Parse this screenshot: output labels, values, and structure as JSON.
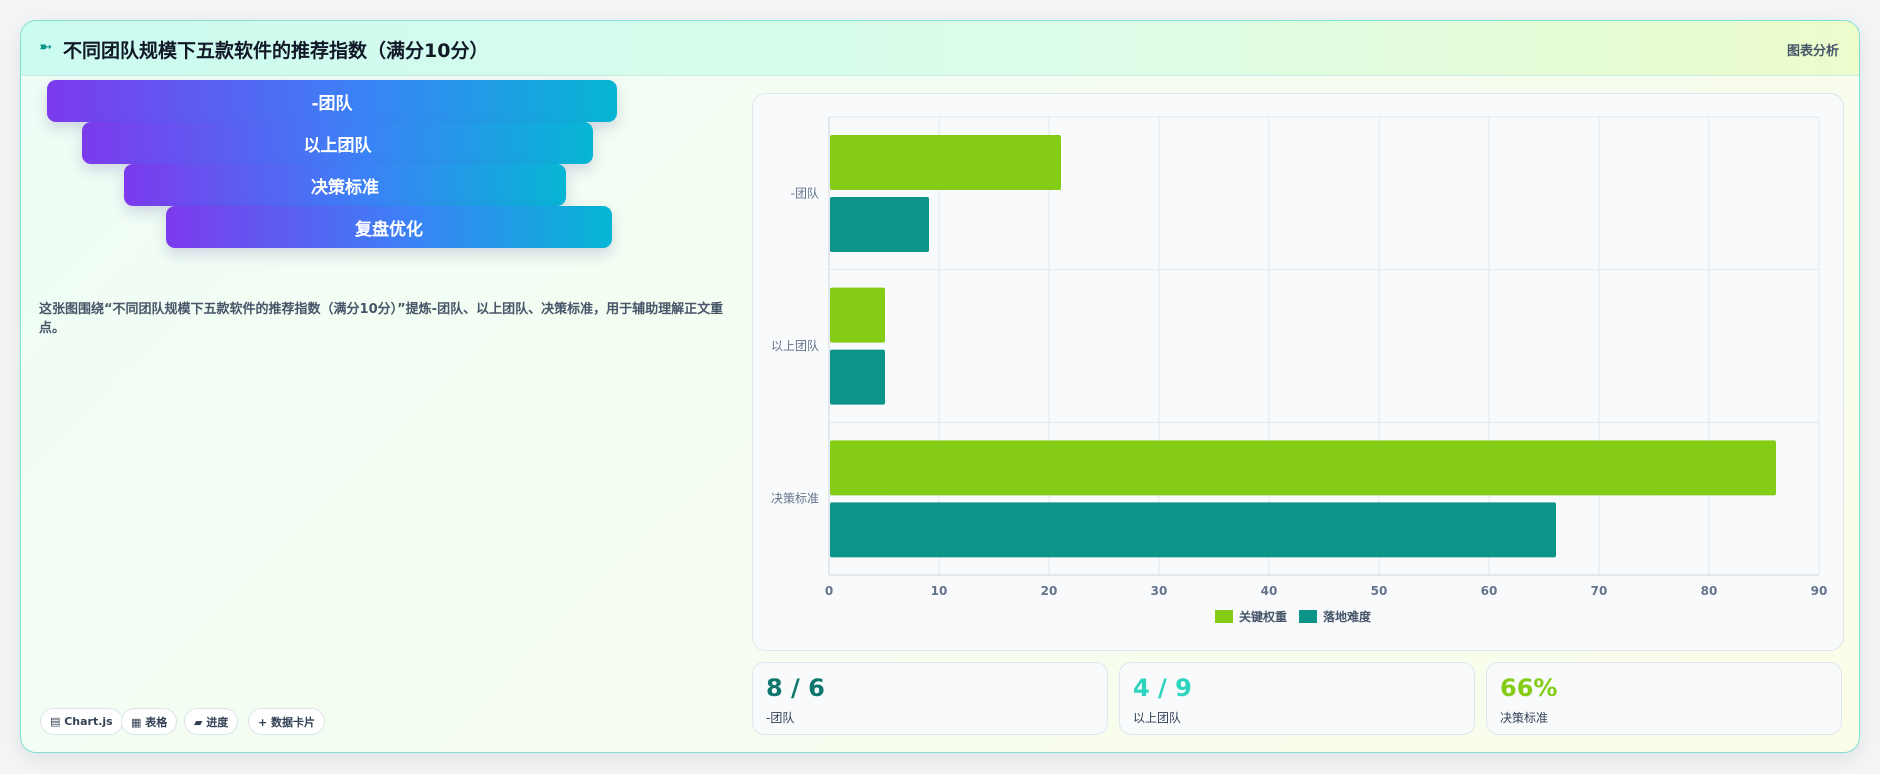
{
  "header": {
    "icon": "spark-icon",
    "icon_glyph": "➼",
    "title": "不同团队规模下五款软件的推荐指数（满分10分）",
    "tag": "图表分析"
  },
  "funnel": [
    {
      "label": "-团队"
    },
    {
      "label": "以上团队"
    },
    {
      "label": "决策标准"
    },
    {
      "label": "复盘优化"
    }
  ],
  "description": "这张图围绕“不同团队规模下五款软件的推荐指数（满分10分）”提炼-团队、以上团队、决策标准，用于辅助理解正文重点。",
  "chips": [
    {
      "label": "▤ Chart.js"
    },
    {
      "label": "▦ 表格"
    },
    {
      "label": "▰ 进度"
    },
    {
      "label": "+ 数据卡片"
    }
  ],
  "chart_data": {
    "type": "bar",
    "orientation": "horizontal",
    "categories": [
      "-团队",
      "以上团队",
      "决策标准"
    ],
    "series": [
      {
        "name": "关键权重",
        "values": [
          21,
          5,
          86
        ],
        "color": "#84cc16"
      },
      {
        "name": "落地难度",
        "values": [
          9,
          5,
          66
        ],
        "color": "#0d9488"
      }
    ],
    "xlim": [
      0,
      90
    ],
    "xticks": [
      "0",
      "10",
      "20",
      "30",
      "40",
      "50",
      "60",
      "70",
      "80",
      "90"
    ],
    "grid": true,
    "legend": "bottom-center"
  },
  "stats": [
    {
      "value": "8 / 6",
      "label": "-团队",
      "color": "#0f766e"
    },
    {
      "value": "4 / 9",
      "label": "以上团队",
      "color": "#2dd4bf"
    },
    {
      "value": "66%",
      "label": "决策标准",
      "color": "#84cc16"
    }
  ]
}
